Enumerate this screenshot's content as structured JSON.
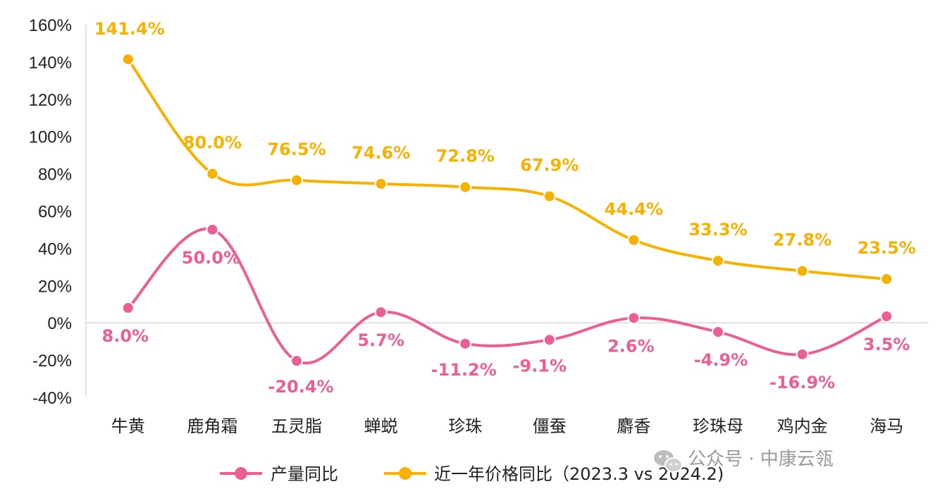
{
  "chart_data": {
    "type": "line",
    "categories": [
      "牛黄",
      "鹿角霜",
      "五灵脂",
      "蝉蜕",
      "珍珠",
      "僵蚕",
      "麝香",
      "珍珠母",
      "鸡内金",
      "海马"
    ],
    "series": [
      {
        "name": "产量同比",
        "values": [
          8.0,
          50.0,
          -20.4,
          5.7,
          -11.2,
          -9.1,
          2.6,
          -4.9,
          -16.9,
          3.5
        ],
        "labels": [
          "8.0%",
          "50.0%",
          "-20.4%",
          "5.7%",
          "-11.2%",
          "-9.1%",
          "2.6%",
          "-4.9%",
          "-16.9%",
          "3.5%"
        ],
        "color": "#EB5F95"
      },
      {
        "name": "近一年价格同比（2023.3 vs 2024.2)",
        "values": [
          141.4,
          80.0,
          76.5,
          74.6,
          72.8,
          67.9,
          44.4,
          33.3,
          27.8,
          23.5
        ],
        "labels": [
          "141.4%",
          "80.0%",
          "76.5%",
          "74.6%",
          "72.8%",
          "67.9%",
          "44.4%",
          "33.3%",
          "27.8%",
          "23.5%"
        ],
        "color": "#F8B100"
      }
    ],
    "ylim": [
      -40,
      160
    ],
    "yticks": [
      "160%",
      "140%",
      "120%",
      "100%",
      "80%",
      "60%",
      "40%",
      "20%",
      "0%",
      "-20%",
      "-40%"
    ],
    "ytick_values": [
      160,
      140,
      120,
      100,
      80,
      60,
      40,
      20,
      0,
      -20,
      -40
    ],
    "legend_position": "bottom",
    "grid": false
  },
  "watermark": {
    "text": "公众号 · 中康云瓴",
    "icon": "wechat-icon"
  }
}
